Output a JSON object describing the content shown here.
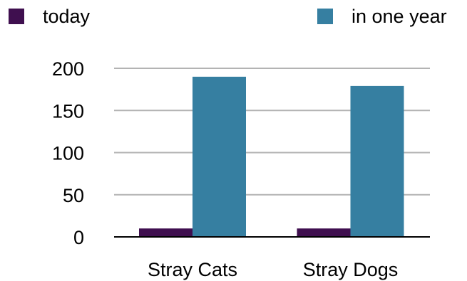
{
  "colors": {
    "today": "#3f0f4f",
    "in_one_year": "#367fa1",
    "grid": "#b3b3b3",
    "axis": "#000000"
  },
  "chart_data": {
    "type": "bar",
    "categories": [
      "Stray Cats",
      "Stray Dogs"
    ],
    "series": [
      {
        "name": "today",
        "values": [
          10,
          10
        ]
      },
      {
        "name": "in one year",
        "values": [
          190,
          179
        ]
      }
    ],
    "ylim": [
      0,
      200
    ],
    "yticks": [
      0,
      50,
      100,
      150,
      200
    ],
    "grid": true,
    "legend": "top"
  }
}
